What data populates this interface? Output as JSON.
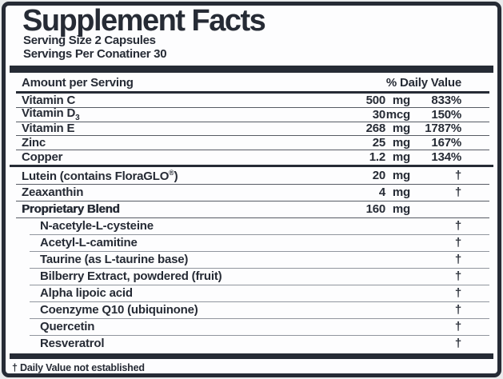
{
  "label": {
    "title": "Supplement Facts",
    "serving_size": "Serving Size 2 Capsules",
    "servings_per_container": "Servings Per Conatiner 30",
    "footnote": "† Daily Value not established"
  },
  "table": {
    "header": {
      "amount": "Amount per Serving",
      "daily_value": "% Daily Value"
    },
    "sections": [
      {
        "tight": true,
        "rows": [
          {
            "name": "Vitamin C",
            "amount": "500",
            "unit": "mg",
            "dv": "833%"
          },
          {
            "name": "Vitamin D",
            "sub": "3",
            "amount": "30",
            "unit": "mcg",
            "dv": "150%"
          },
          {
            "name": "Vitamin E",
            "amount": "268",
            "unit": "mg",
            "dv": "1787%"
          },
          {
            "name": "Zinc",
            "amount": "25",
            "unit": "mg",
            "dv": "167%"
          },
          {
            "name": "Copper",
            "amount": "1.2",
            "unit": "mg",
            "dv": "134%"
          }
        ]
      },
      {
        "tight": false,
        "rows": [
          {
            "name": "Lutein (contains FloraGLO",
            "sup": "®",
            "tail": ")",
            "amount": "20",
            "unit": "mg",
            "dv": "†"
          },
          {
            "name": "Zeaxanthin",
            "amount": "4",
            "unit": "mg",
            "dv": "†"
          },
          {
            "name": "Proprietary Blend",
            "bold": true,
            "amount": "160",
            "unit": "mg",
            "dv": ""
          },
          {
            "name": "N-acetyle-L-cysteine",
            "indent": true,
            "dv": "†"
          },
          {
            "name": "Acetyl-L-camitine",
            "indent": true,
            "dv": "†"
          },
          {
            "name": "Taurine (as L-taurine base)",
            "indent": true,
            "dv": "†"
          },
          {
            "name": "Bilberry Extract, powdered (fruit)",
            "indent": true,
            "dv": "†"
          },
          {
            "name": "Alpha lipoic acid",
            "indent": true,
            "dv": "†"
          },
          {
            "name": "Coenzyme Q10 (ubiquinone)",
            "indent": true,
            "dv": "†"
          },
          {
            "name": "Quercetin",
            "indent": true,
            "dv": "†"
          },
          {
            "name": "Resveratrol",
            "indent": true,
            "dv": "†"
          }
        ]
      }
    ]
  },
  "colors": {
    "ink": "#262b35",
    "separator": "#565b64",
    "sub_separator": "#91969e",
    "background": "#e9ebec",
    "panel": "#fdfdfe"
  }
}
